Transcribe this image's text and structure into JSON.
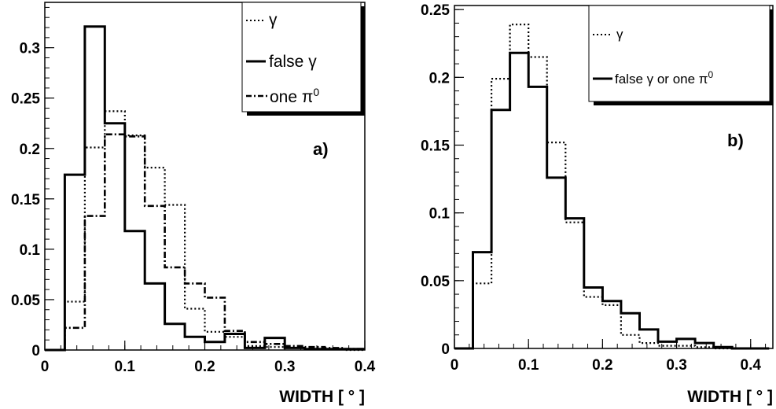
{
  "chart_data": [
    {
      "type": "histogram",
      "panel_label": "a)",
      "xlabel": "WIDTH [ ° ]",
      "xlim": [
        0,
        0.4
      ],
      "ylim": [
        0,
        0.345
      ],
      "xticks": [
        "0",
        "0.1",
        "0.2",
        "0.3",
        "0.4"
      ],
      "xtick_values": [
        0,
        0.1,
        0.2,
        0.3,
        0.4
      ],
      "yticks": [
        "0",
        "0.05",
        "0.1",
        "0.15",
        "0.2",
        "0.25",
        "0.3"
      ],
      "ytick_values": [
        0,
        0.05,
        0.1,
        0.15,
        0.2,
        0.25,
        0.3
      ],
      "bin_edges": [
        0,
        0.025,
        0.05,
        0.075,
        0.1,
        0.125,
        0.15,
        0.175,
        0.2,
        0.225,
        0.25,
        0.275,
        0.3,
        0.325,
        0.35,
        0.375,
        0.4
      ],
      "legend_position": "top-right",
      "series": [
        {
          "name": "γ",
          "style": "dotted",
          "values": [
            0,
            0.048,
            0.201,
            0.237,
            0.213,
            0.181,
            0.144,
            0.041,
            0.018,
            0.013,
            0.004,
            0.003,
            0.002,
            0.001,
            0.001,
            0
          ]
        },
        {
          "name": "false γ",
          "style": "solid",
          "values": [
            0,
            0.174,
            0.321,
            0.225,
            0.118,
            0.066,
            0.026,
            0.013,
            0.008,
            0.016,
            0.002,
            0.012,
            0.002,
            0.001,
            0.001,
            0.001
          ]
        },
        {
          "name": "one π",
          "name_superscript": "0",
          "style": "dashdot",
          "values": [
            0,
            0.022,
            0.133,
            0.214,
            0.212,
            0.143,
            0.082,
            0.066,
            0.052,
            0.019,
            0.008,
            0.006,
            0.004,
            0.003,
            0.002,
            0.001
          ]
        }
      ]
    },
    {
      "type": "histogram",
      "panel_label": "b)",
      "xlabel": "WIDTH  [ ° ]",
      "xlim": [
        0,
        0.43
      ],
      "ylim": [
        0,
        0.253
      ],
      "xticks": [
        "0",
        "0.1",
        "0.2",
        "0.3",
        "0.4"
      ],
      "xtick_values": [
        0,
        0.1,
        0.2,
        0.3,
        0.4
      ],
      "yticks": [
        "0",
        "0.05",
        "0.1",
        "0.15",
        "0.2",
        "0.25"
      ],
      "ytick_values": [
        0,
        0.05,
        0.1,
        0.15,
        0.2,
        0.25
      ],
      "bin_edges": [
        0,
        0.025,
        0.05,
        0.075,
        0.1,
        0.125,
        0.15,
        0.175,
        0.2,
        0.225,
        0.25,
        0.275,
        0.3,
        0.325,
        0.35,
        0.375,
        0.4,
        0.425
      ],
      "legend_position": "top-right",
      "series": [
        {
          "name": "γ",
          "style": "dotted",
          "values": [
            0,
            0.048,
            0.199,
            0.239,
            0.215,
            0.152,
            0.093,
            0.038,
            0.032,
            0.01,
            0.004,
            0.002,
            0.002,
            0.001,
            0,
            0,
            0
          ]
        },
        {
          "name": "false γ or one π",
          "name_superscript": "0",
          "style": "solid",
          "values": [
            0,
            0.071,
            0.176,
            0.218,
            0.193,
            0.126,
            0.096,
            0.045,
            0.035,
            0.026,
            0.014,
            0.005,
            0.007,
            0.004,
            0.001,
            0,
            0
          ]
        }
      ]
    }
  ]
}
